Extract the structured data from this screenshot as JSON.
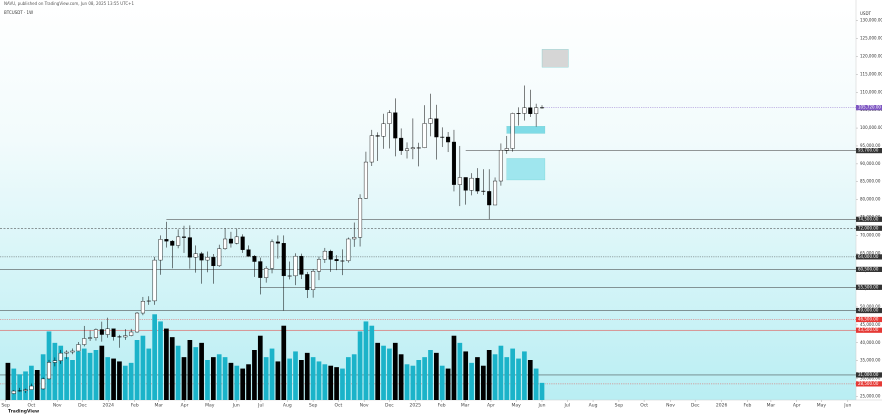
{
  "header": {
    "publisher": "NAVU, published on TradingView.com, Jun 08, 2025 13:55 UTC+1",
    "symbol": "BTCUSDT · 1W",
    "logo": "TradingView"
  },
  "chart_data": {
    "type": "candlestick",
    "currency": "USDT",
    "ylim": [
      24000,
      133000
    ],
    "xlim": [
      -1.35,
      144.5
    ],
    "volume_ylim": [
      0,
      70
    ],
    "up_color": "#ffffff",
    "down_color": "#000000",
    "volume_up_color": "#1bb3c9",
    "volume_down_color": "#000000",
    "series": [
      {
        "name": "BTCUSDT",
        "open": [
          25900,
          25800,
          26500,
          26600,
          26900,
          27900,
          27100,
          29900,
          34500,
          35000,
          37100,
          37400,
          37700,
          39500,
          41200,
          41400,
          43700,
          42300,
          43900,
          41700,
          41600,
          42000,
          43000,
          48300,
          51600,
          51700,
          63100,
          68900,
          68400,
          67200,
          69600,
          69400,
          63900,
          64900,
          63100,
          63900,
          61500,
          66300,
          69000,
          67800,
          69600,
          66000,
          64200,
          62700,
          58200,
          60800,
          68200,
          67800,
          58700,
          58700,
          64200,
          59100,
          54800,
          60000,
          63300,
          65600,
          63300,
          62900,
          62900,
          69000,
          69500,
          80400,
          90500,
          97900,
          97700,
          101200,
          104300,
          97200,
          93700,
          94200,
          94500,
          94500,
          101300,
          102600,
          97500,
          97500,
          96100,
          84200,
          86200,
          82600,
          86000,
          82400,
          82300,
          78500,
          85200,
          93800,
          94300,
          104100,
          104100,
          105700,
          104000,
          105700
        ],
        "high": [
          26400,
          26800,
          27400,
          27200,
          28600,
          28100,
          30300,
          35200,
          35900,
          38000,
          37900,
          38400,
          40200,
          44700,
          43400,
          44000,
          45900,
          47000,
          43400,
          42200,
          43800,
          43900,
          48600,
          52800,
          53000,
          64000,
          70000,
          73800,
          68700,
          71700,
          72700,
          72800,
          67200,
          65400,
          65500,
          64800,
          67400,
          71900,
          71000,
          71900,
          70300,
          67200,
          64500,
          63800,
          61400,
          68900,
          70000,
          70000,
          62700,
          65000,
          64900,
          59800,
          60600,
          64100,
          66500,
          66000,
          64500,
          66100,
          69400,
          73600,
          81500,
          93400,
          99500,
          98800,
          104000,
          105000,
          108300,
          99900,
          96000,
          102700,
          95900,
          106400,
          109600,
          106500,
          100200,
          98900,
          99500,
          95000,
          85300,
          87400,
          88800,
          88500,
          88500,
          86200,
          95700,
          97800,
          104300,
          105800,
          111900,
          110700,
          106800,
          106400
        ],
        "low": [
          24900,
          25600,
          26300,
          26000,
          26900,
          26600,
          26900,
          29700,
          33400,
          34100,
          35500,
          36800,
          37600,
          39000,
          40500,
          40600,
          40300,
          41400,
          40600,
          38600,
          40800,
          41800,
          42800,
          47700,
          50600,
          50600,
          59000,
          66600,
          60800,
          66400,
          65100,
          60700,
          59600,
          56500,
          59700,
          56500,
          61200,
          66000,
          66600,
          67500,
          65100,
          64100,
          58400,
          53500,
          56800,
          59400,
          63500,
          49000,
          57700,
          56100,
          57800,
          52500,
          52600,
          57500,
          62300,
          59800,
          60300,
          58900,
          62400,
          66800,
          66900,
          80200,
          89400,
          90800,
          94200,
          94300,
          92100,
          92500,
          91500,
          91300,
          89300,
          94400,
          97700,
          91200,
          94700,
          93300,
          82300,
          78200,
          78600,
          81200,
          81600,
          81300,
          74500,
          78900,
          83900,
          92800,
          93400,
          100700,
          102100,
          103100,
          100400,
          105400
        ],
        "close": [
          25800,
          26500,
          26600,
          26900,
          27900,
          27100,
          29900,
          34500,
          35000,
          37100,
          37400,
          37700,
          39500,
          41200,
          41400,
          43700,
          42300,
          43900,
          41700,
          41600,
          42000,
          43000,
          48300,
          51600,
          51700,
          63100,
          68900,
          68400,
          67200,
          69600,
          69400,
          63900,
          64900,
          63100,
          63900,
          61500,
          66300,
          69000,
          67800,
          69600,
          66000,
          64200,
          62700,
          58200,
          60800,
          68200,
          67800,
          58700,
          58700,
          64200,
          59100,
          54800,
          60000,
          63300,
          65600,
          63300,
          62900,
          62900,
          69000,
          69500,
          80400,
          90500,
          97900,
          97700,
          101200,
          104300,
          97200,
          93700,
          94200,
          94500,
          94500,
          101300,
          102600,
          97500,
          97500,
          96100,
          84200,
          86200,
          82600,
          86000,
          82400,
          82300,
          78500,
          85200,
          93800,
          94300,
          104100,
          104100,
          105700,
          104000,
          105700,
          105720
        ],
        "volume": [
          26,
          22,
          18,
          20,
          24,
          21,
          32,
          48,
          40,
          38,
          30,
          28,
          34,
          36,
          33,
          35,
          38,
          30,
          29,
          27,
          24,
          26,
          42,
          45,
          36,
          60,
          55,
          50,
          44,
          38,
          30,
          42,
          37,
          40,
          28,
          30,
          32,
          30,
          26,
          24,
          22,
          25,
          35,
          45,
          30,
          36,
          27,
          52,
          29,
          34,
          28,
          33,
          30,
          27,
          25,
          24,
          23,
          22,
          30,
          32,
          48,
          55,
          52,
          40,
          38,
          36,
          40,
          32,
          25,
          24,
          28,
          30,
          35,
          33,
          24,
          22,
          45,
          40,
          34,
          26,
          30,
          24,
          35,
          32,
          38,
          30,
          36,
          29,
          34,
          28,
          22,
          12
        ]
      }
    ],
    "yticks": [
      {
        "value": 25000,
        "label": "25,000.00"
      },
      {
        "value": 30000,
        "label": "30,000.00"
      },
      {
        "value": 35000,
        "label": "35,000.00"
      },
      {
        "value": 40000,
        "label": "40,000.00"
      },
      {
        "value": 45000,
        "label": "45,000.00"
      },
      {
        "value": 50000,
        "label": "50,000.00"
      },
      {
        "value": 55000,
        "label": "55,000.00"
      },
      {
        "value": 60000,
        "label": "60,000.00"
      },
      {
        "value": 65000,
        "label": "65,000.00"
      },
      {
        "value": 70000,
        "label": "70,000.00"
      },
      {
        "value": 75000,
        "label": "75,000.00"
      },
      {
        "value": 80000,
        "label": "80,000.00"
      },
      {
        "value": 85000,
        "label": "85,000.00"
      },
      {
        "value": 90000,
        "label": "90,000.00"
      },
      {
        "value": 95000,
        "label": "95,000.00"
      },
      {
        "value": 100000,
        "label": "100,000.00"
      },
      {
        "value": 105000,
        "label": "105,000.00"
      },
      {
        "value": 110000,
        "label": "110,000.00"
      },
      {
        "value": 115000,
        "label": "115,000.00"
      },
      {
        "value": 120000,
        "label": "120,000.00"
      },
      {
        "value": 125000,
        "label": "125,000.00"
      },
      {
        "value": 130000,
        "label": "130,000.00"
      }
    ],
    "xticks": [
      {
        "value": -0.4,
        "label": "Sep"
      },
      {
        "value": 4,
        "label": "Oct"
      },
      {
        "value": 8.4,
        "label": "Nov"
      },
      {
        "value": 12.7,
        "label": "Dec"
      },
      {
        "value": 17.1,
        "label": "2024"
      },
      {
        "value": 21.6,
        "label": "Feb"
      },
      {
        "value": 25.7,
        "label": "Mar"
      },
      {
        "value": 30.1,
        "label": "Apr"
      },
      {
        "value": 34.4,
        "label": "May"
      },
      {
        "value": 38.9,
        "label": "Jun"
      },
      {
        "value": 43.1,
        "label": "Jul"
      },
      {
        "value": 47.6,
        "label": "Aug"
      },
      {
        "value": 52,
        "label": "Sep"
      },
      {
        "value": 56.3,
        "label": "Oct"
      },
      {
        "value": 60.7,
        "label": "Nov"
      },
      {
        "value": 65,
        "label": "Dec"
      },
      {
        "value": 69.4,
        "label": "2025"
      },
      {
        "value": 73.9,
        "label": "Feb"
      },
      {
        "value": 77.9,
        "label": "Mar"
      },
      {
        "value": 82.3,
        "label": "Apr"
      },
      {
        "value": 86.6,
        "label": "May"
      },
      {
        "value": 91,
        "label": "Jun"
      },
      {
        "value": 95.3,
        "label": "Jul"
      },
      {
        "value": 99.7,
        "label": "Aug"
      },
      {
        "value": 104.1,
        "label": "Sep"
      },
      {
        "value": 108.4,
        "label": "Oct"
      },
      {
        "value": 112.9,
        "label": "Nov"
      },
      {
        "value": 117.1,
        "label": "Dec"
      },
      {
        "value": 121.6,
        "label": "2026"
      },
      {
        "value": 126,
        "label": "Feb"
      },
      {
        "value": 130,
        "label": "Mar"
      },
      {
        "value": 134.4,
        "label": "Apr"
      },
      {
        "value": 138.6,
        "label": "May"
      },
      {
        "value": 143.1,
        "label": "Jun"
      }
    ],
    "levels": [
      {
        "value": 105720,
        "label": "105,720.00",
        "from": 91,
        "color": "#7e57c2",
        "style": "dotted"
      },
      {
        "value": 93700,
        "label": "93,700.00",
        "from": 78,
        "color": "#333333",
        "style": "solid"
      },
      {
        "value": 74500,
        "label": "74,500.00",
        "from": 27,
        "color": "#333333",
        "style": "solid"
      },
      {
        "value": 72000,
        "label": "72,000.00",
        "from": -1.35,
        "color": "#333333",
        "style": "dashed"
      },
      {
        "value": 64000,
        "label": "64,000.00",
        "from": -1.35,
        "color": "#333333",
        "style": "dotted"
      },
      {
        "value": 60500,
        "label": "60,500.00",
        "from": -1.35,
        "color": "#333333",
        "style": "solid"
      },
      {
        "value": 55500,
        "label": "55,500.00",
        "from": 43,
        "color": "#333333",
        "style": "solid"
      },
      {
        "value": 49000,
        "label": "49,000.00",
        "from": -1.35,
        "color": "#333333",
        "style": "solid"
      },
      {
        "value": 46500,
        "label": "46,500.00",
        "from": -1.35,
        "color": "#e53935",
        "style": "dotted"
      },
      {
        "value": 43500,
        "label": "43,500.00",
        "from": -1.35,
        "color": "#e53935",
        "style": "solid"
      },
      {
        "value": 31000,
        "label": "31,000.00",
        "from": -1.35,
        "color": "#333333",
        "style": "solid"
      },
      {
        "value": 28500,
        "label": "28,500.00",
        "from": -1.35,
        "color": "#e53935",
        "style": "dotted"
      }
    ],
    "zones": [
      {
        "from": 85,
        "to": 91.5,
        "low": 98500,
        "high": 100500,
        "color": "#7fdbe6"
      },
      {
        "from": 85,
        "to": 91.5,
        "low": 85500,
        "high": 91500,
        "color": "#9fe6ee"
      },
      {
        "from": 91,
        "to": 95.5,
        "low": 117000,
        "high": 122000,
        "color": "#d6d6d6"
      }
    ]
  }
}
